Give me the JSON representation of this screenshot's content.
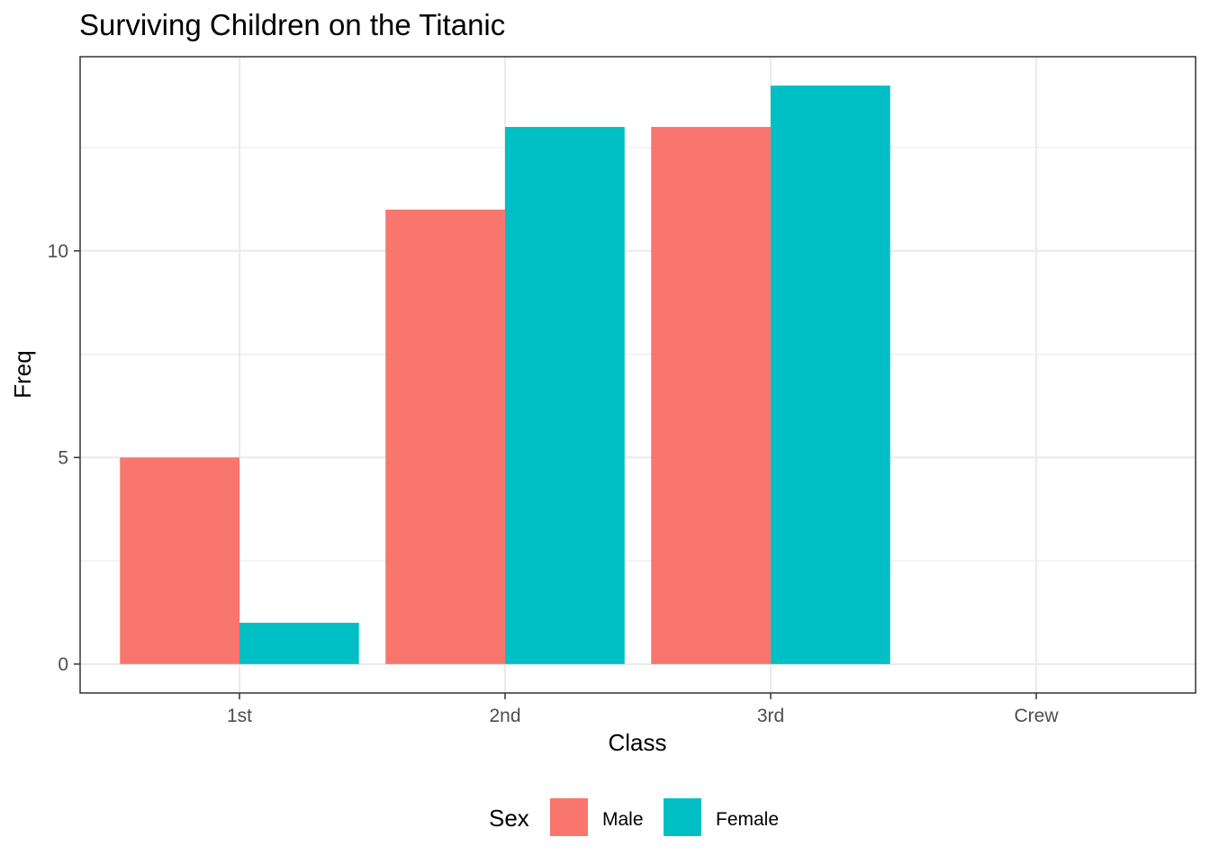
{
  "chart_data": {
    "type": "bar",
    "title": "Surviving Children on the Titanic",
    "xlabel": "Class",
    "ylabel": "Freq",
    "categories": [
      "1st",
      "2nd",
      "3rd",
      "Crew"
    ],
    "series": [
      {
        "name": "Male",
        "color": "#F8766D",
        "values": [
          5,
          11,
          13,
          0
        ]
      },
      {
        "name": "Female",
        "color": "#00BFC4",
        "values": [
          1,
          13,
          14,
          0
        ]
      }
    ],
    "ylim": [
      -0.7,
      14.7
    ],
    "yticks": [
      0,
      5,
      10
    ],
    "ytick_labels": [
      "0",
      "5",
      "10"
    ],
    "grid": true,
    "legend": {
      "title": "Sex",
      "position": "bottom"
    }
  }
}
